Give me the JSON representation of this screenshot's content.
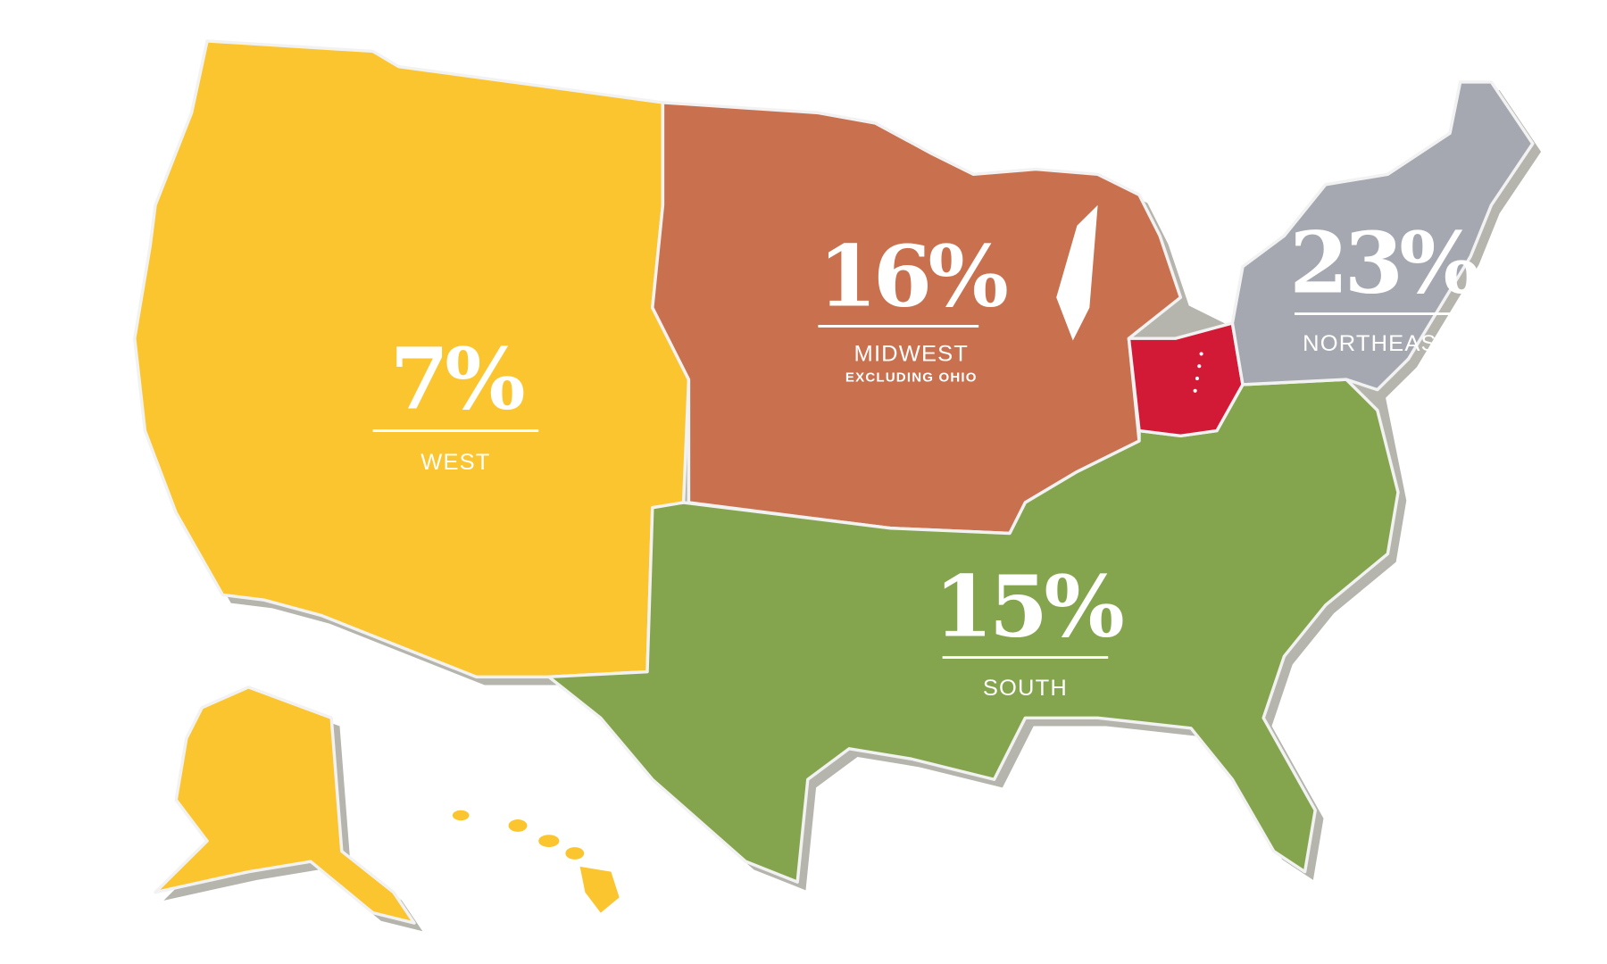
{
  "regions": [
    {
      "share": "7%",
      "name": "WEST"
    },
    {
      "share": "16%",
      "name": "MIDWEST",
      "note": "EXCLUDING OHIO"
    },
    {
      "share": "15%",
      "name": "SOUTH"
    },
    {
      "share": "23%",
      "name": "NORTHEAST"
    }
  ]
}
